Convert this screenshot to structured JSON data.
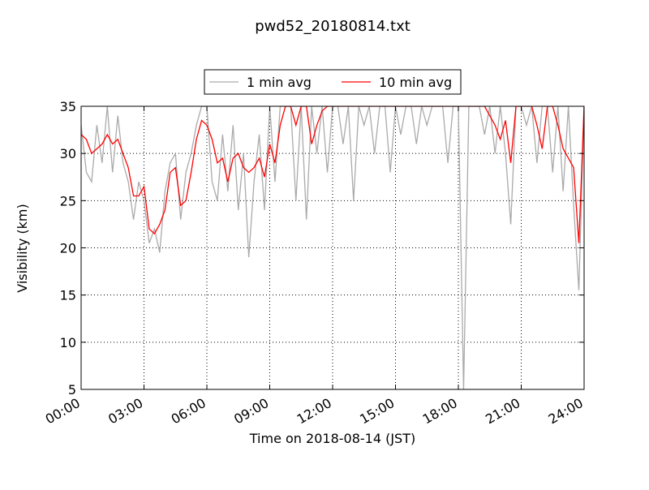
{
  "chart_data": {
    "type": "line",
    "title": "pwd52_20180814.txt",
    "x_label": "Time on 2018-08-14 (JST)",
    "y_label": "Visibility (km)",
    "x": [
      0,
      0.25,
      0.5,
      0.75,
      1,
      1.25,
      1.5,
      1.75,
      2,
      2.25,
      2.5,
      2.75,
      3,
      3.25,
      3.5,
      3.75,
      4,
      4.25,
      4.5,
      4.75,
      5,
      5.25,
      5.5,
      5.75,
      6,
      6.25,
      6.5,
      6.75,
      7,
      7.25,
      7.5,
      7.75,
      8,
      8.25,
      8.5,
      8.75,
      9,
      9.25,
      9.5,
      9.75,
      10,
      10.25,
      10.5,
      10.75,
      11,
      11.25,
      11.5,
      11.75,
      12,
      12.25,
      12.5,
      12.75,
      13,
      13.25,
      13.5,
      13.75,
      14,
      14.25,
      14.5,
      14.75,
      15,
      15.25,
      15.5,
      15.75,
      16,
      16.25,
      16.5,
      16.75,
      17,
      17.25,
      17.5,
      17.75,
      18,
      18.25,
      18.5,
      18.75,
      19,
      19.25,
      19.5,
      19.75,
      20,
      20.25,
      20.5,
      20.75,
      21,
      21.25,
      21.5,
      21.75,
      22,
      22.25,
      22.5,
      22.75,
      23,
      23.25,
      23.5,
      23.75,
      24
    ],
    "series": [
      {
        "name": "1 min avg",
        "color": "#aaaaaa",
        "values": [
          33,
          28,
          27,
          33,
          29,
          35,
          28,
          34,
          29,
          27,
          23,
          27,
          25,
          20.5,
          22,
          19.5,
          26,
          29,
          30,
          23,
          28,
          30,
          33,
          35,
          35,
          27,
          25,
          32,
          26,
          33,
          24,
          30,
          19,
          27,
          32,
          24,
          35,
          27,
          35,
          35,
          35,
          25,
          35,
          23,
          35,
          30,
          35,
          28,
          35,
          35,
          31,
          35,
          25,
          35,
          33,
          35,
          30,
          35,
          35,
          28,
          35,
          32,
          35,
          35,
          31,
          35,
          33,
          35,
          35,
          35,
          29,
          35,
          35,
          5,
          35,
          35,
          35,
          32,
          35,
          30,
          35,
          30,
          22.5,
          35,
          35,
          33,
          35,
          29,
          35,
          35,
          28,
          35,
          26,
          35,
          24.5,
          15.5,
          35
        ]
      },
      {
        "name": "10 min avg",
        "color": "#ff0000",
        "values": [
          32,
          31.5,
          30,
          30.5,
          31,
          32,
          31,
          31.5,
          30,
          28.5,
          25.5,
          25.5,
          26.5,
          22,
          21.5,
          22.5,
          24,
          28,
          28.5,
          24.5,
          25,
          28,
          31.5,
          33.5,
          33,
          31.5,
          29,
          29.5,
          27,
          29.5,
          30,
          28.5,
          28,
          28.5,
          29.5,
          27.5,
          31,
          29,
          33,
          35,
          35,
          33,
          35,
          35,
          31,
          33,
          34.5,
          35,
          35,
          35,
          35,
          35,
          35,
          35,
          35,
          35,
          35,
          35,
          35,
          35,
          35,
          35,
          35,
          35,
          35,
          35,
          35,
          35,
          35,
          35,
          35,
          35,
          35,
          35,
          35,
          35,
          35,
          35,
          34,
          33,
          31.5,
          33.5,
          29,
          35,
          35,
          35,
          35,
          33,
          30.5,
          35,
          35,
          33,
          30.5,
          29.5,
          28.5,
          20.5,
          35
        ]
      }
    ],
    "xlim": [
      0,
      24
    ],
    "xticks": [
      {
        "value": 0,
        "label": "00:00"
      },
      {
        "value": 3,
        "label": "03:00"
      },
      {
        "value": 6,
        "label": "06:00"
      },
      {
        "value": 9,
        "label": "09:00"
      },
      {
        "value": 12,
        "label": "12:00"
      },
      {
        "value": 15,
        "label": "15:00"
      },
      {
        "value": 18,
        "label": "18:00"
      },
      {
        "value": 21,
        "label": "21:00"
      },
      {
        "value": 24,
        "label": "24:00"
      }
    ],
    "ylim": [
      5,
      35
    ],
    "yticks": [
      5,
      10,
      15,
      20,
      25,
      30,
      35
    ],
    "grid": true,
    "legend": "upper center"
  }
}
